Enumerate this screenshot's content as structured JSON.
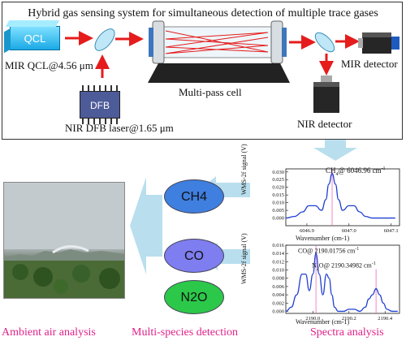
{
  "title": "Hybrid gas sensing system for simultaneous detection of multiple trace gases",
  "components": {
    "qcl_box": "QCL",
    "qcl_label": "MIR QCL@4.56 μm",
    "dfb_box": "DFB",
    "dfb_label": "NIR DFB laser@1.65 μm",
    "cell_label": "Multi-pass cell",
    "mir_detector": "MIR detector",
    "nir_detector": "NIR detector"
  },
  "species": {
    "ch4": "CH4",
    "co": "CO",
    "n2o": "N2O"
  },
  "sections": {
    "ambient": "Ambient air analysis",
    "multi": "Multi-species detection",
    "spectra": "Spectra analysis"
  },
  "colors": {
    "laser_red": "#e51c1c",
    "arrow_blue": "#b9dfee",
    "section_pink": "#e0218a",
    "ellipse_blue": "#3f7fe0",
    "ellipse_purple": "#7e7ef0",
    "ellipse_green": "#2cc84a"
  },
  "chart_data": [
    {
      "type": "line",
      "ylabel": "WMS-2f signal (V)",
      "xlabel": "Wavenumber (cm-1)",
      "annotation": "CH4@6046.96 cm-1",
      "annotation_parts": {
        "species": "CH",
        "sub": "4",
        "at": "@",
        "value": "6046.96 cm",
        "sup": "-1"
      },
      "xlim": [
        6046.85,
        6047.12
      ],
      "ylim": [
        -0.005,
        0.032
      ],
      "xticks": [
        "6046.9",
        "6047.0",
        "6047.1"
      ],
      "yticks": [
        "0.030",
        "0.025",
        "0.020",
        "0.015",
        "0.010",
        "0.005",
        "0.000"
      ],
      "series": [
        {
          "x": [
            6046.85,
            6046.87,
            6046.89,
            6046.905,
            6046.92,
            6046.935,
            6046.945,
            6046.952,
            6046.96,
            6046.968,
            6046.975,
            6046.985,
            6047.0,
            6047.012,
            6047.025,
            6047.04,
            6047.055,
            6047.07,
            6047.09,
            6047.11
          ],
          "y": [
            0.0,
            0.001,
            0.004,
            0.008,
            0.008,
            0.005,
            0.012,
            0.022,
            0.029,
            0.022,
            0.012,
            0.005,
            0.008,
            0.008,
            0.004,
            0.001,
            0.0,
            0.0,
            0.0,
            0.0
          ]
        }
      ],
      "marker_x": 6046.96
    },
    {
      "type": "line",
      "ylabel": "WMS-2f signal (V)",
      "xlabel": "Wavenumber (cm-1)",
      "annotation_co": "CO@2190.01756 cm-1",
      "annotation_co_parts": {
        "species": "CO",
        "at": "@",
        "value": "2190.01756 cm",
        "sup": "-1"
      },
      "annotation_n2o": "N2O@2190.34982 cm-1",
      "annotation_n2o_parts": {
        "species": "N",
        "sub": "2",
        "rest": "O",
        "at": "@",
        "value": "2190.34982 cm",
        "sup": "-1"
      },
      "xlim": [
        2189.85,
        2190.48
      ],
      "ylim": [
        -0.0005,
        0.016
      ],
      "xticks": [
        "2190.0",
        "2190.2",
        "2190.4"
      ],
      "yticks": [
        "0.016",
        "0.014",
        "0.012",
        "0.010",
        "0.008",
        "0.006",
        "0.004",
        "0.002",
        "0.000"
      ],
      "series": [
        {
          "x": [
            2189.85,
            2189.88,
            2189.91,
            2189.94,
            2189.96,
            2189.98,
            2190.0,
            2190.017,
            2190.035,
            2190.055,
            2190.075,
            2190.09,
            2190.105,
            2190.12,
            2190.14,
            2190.17,
            2190.2,
            2190.23,
            2190.26,
            2190.29,
            2190.31,
            2190.33,
            2190.35,
            2190.37,
            2190.39,
            2190.41,
            2190.44,
            2190.47
          ],
          "y": [
            0.0,
            0.001,
            0.004,
            0.009,
            0.009,
            0.005,
            0.009,
            0.014,
            0.009,
            0.004,
            0.009,
            0.008,
            0.004,
            0.001,
            0.0,
            0.0,
            0.0005,
            0.0005,
            0.0,
            0.001,
            0.003,
            0.004,
            0.0055,
            0.004,
            0.002,
            0.0005,
            0.0,
            0.0
          ]
        }
      ],
      "marker_x": 2190.017,
      "marker2_x": 2190.35
    }
  ]
}
